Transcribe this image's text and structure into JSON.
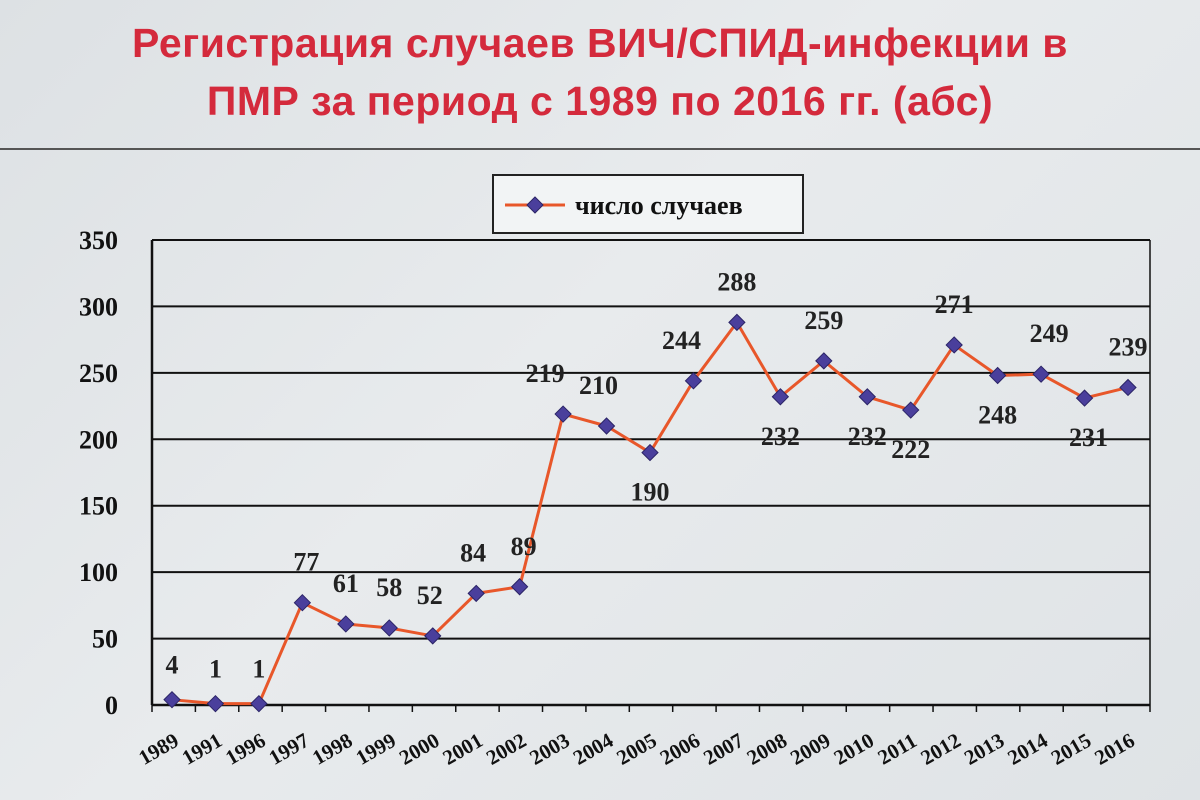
{
  "title_line1": "Регистрация случаев ВИЧ/СПИД-инфекции в",
  "title_line2": "ПМР за период с 1989 по  2016 гг. (абс)",
  "colors": {
    "title": "#d42a3c",
    "line": "#e8572a",
    "marker": "#4a3f9c",
    "grid": "#111111"
  },
  "chart_data": {
    "type": "line",
    "title": "Регистрация случаев ВИЧ/СПИД-инфекции в ПМР за период с 1989 по  2016 гг. (абс)",
    "xlabel": "",
    "ylabel": "",
    "ylim": [
      0,
      350
    ],
    "yticks": [
      0,
      50,
      100,
      150,
      200,
      250,
      300,
      350
    ],
    "grid": true,
    "legend_position": "top-center",
    "categories": [
      "1989",
      "1991",
      "1996",
      "1997",
      "1998",
      "1999",
      "2000",
      "2001",
      "2002",
      "2003",
      "2004",
      "2005",
      "2006",
      "2007",
      "2008",
      "2009",
      "2010",
      "2011",
      "2012",
      "2013",
      "2014",
      "2015",
      "2016"
    ],
    "series": [
      {
        "name": "число случаев",
        "values": [
          4,
          1,
          1,
          77,
          61,
          58,
          52,
          84,
          89,
          219,
          210,
          190,
          244,
          288,
          232,
          259,
          232,
          222,
          271,
          248,
          249,
          231,
          239
        ]
      }
    ]
  }
}
